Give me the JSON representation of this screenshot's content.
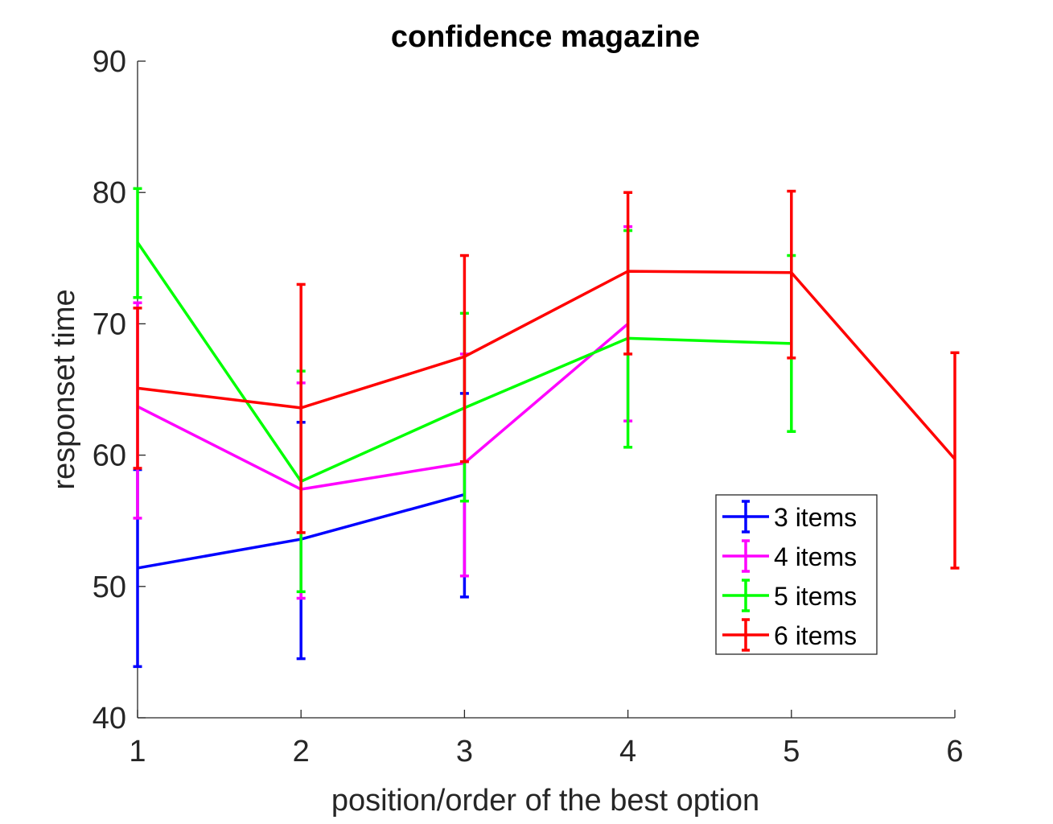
{
  "chart_data": {
    "type": "line",
    "title": "confidence magazine",
    "xlabel": "position/order of the best option",
    "ylabel": "responset time",
    "xlim": [
      1,
      6
    ],
    "ylim": [
      40,
      90
    ],
    "xticks": [
      1,
      2,
      3,
      4,
      5,
      6
    ],
    "yticks": [
      40,
      50,
      60,
      70,
      80,
      90
    ],
    "xtick_labels": [
      "1",
      "2",
      "3",
      "4",
      "5",
      "6"
    ],
    "ytick_labels": [
      "40",
      "50",
      "60",
      "70",
      "80",
      "90"
    ],
    "grid": false,
    "legend_position": "bottom-right",
    "error_bars": true,
    "series": [
      {
        "name": "3 items",
        "color": "#0000ff",
        "x": [
          1,
          2,
          3
        ],
        "y": [
          51.4,
          53.6,
          57.0
        ],
        "err_low": [
          43.9,
          44.5,
          49.2
        ],
        "err_high": [
          58.9,
          62.5,
          64.7
        ]
      },
      {
        "name": "4 items",
        "color": "#ff00ff",
        "x": [
          1,
          2,
          3,
          4
        ],
        "y": [
          63.7,
          57.4,
          59.4,
          70.0
        ],
        "err_low": [
          55.2,
          49.1,
          50.8,
          62.6
        ],
        "err_high": [
          71.6,
          65.5,
          67.7,
          77.4
        ]
      },
      {
        "name": "5 items",
        "color": "#00ff00",
        "x": [
          1,
          2,
          3,
          4,
          5
        ],
        "y": [
          76.2,
          58.0,
          63.6,
          68.9,
          68.5
        ],
        "err_low": [
          72.0,
          49.6,
          56.5,
          60.6,
          61.8
        ],
        "err_high": [
          80.3,
          66.4,
          70.8,
          77.1,
          75.2
        ]
      },
      {
        "name": "6 items",
        "color": "#ff0000",
        "x": [
          1,
          2,
          3,
          4,
          5,
          6
        ],
        "y": [
          65.1,
          63.6,
          67.5,
          74.0,
          73.9,
          59.7
        ],
        "err_low": [
          59.0,
          54.1,
          59.5,
          67.7,
          67.4,
          51.4
        ],
        "err_high": [
          71.2,
          73.0,
          75.2,
          80.0,
          80.1,
          67.8
        ]
      }
    ]
  }
}
